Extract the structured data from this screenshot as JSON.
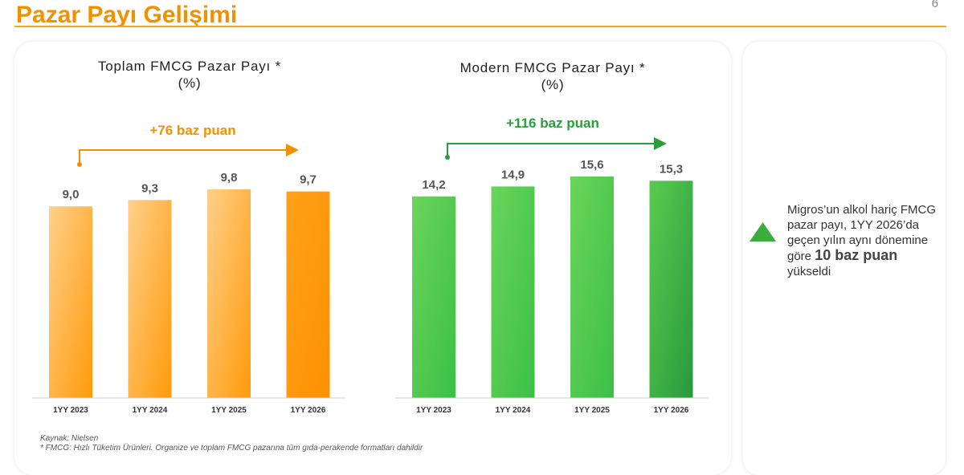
{
  "page": {
    "title": "Pazar Payı Gelişimi",
    "page_number": "6"
  },
  "colors": {
    "orange": "#ff9500",
    "green": "#2fb34a",
    "accent": "#f29100"
  },
  "left_chart": {
    "title_line1": "Toplam FMCG Pazar Payı *",
    "title_line2": "(%)",
    "gain_label": "+76 baz puan"
  },
  "right_chart": {
    "title_line1": "Modern FMCG Pazar Payı *",
    "title_line2": "(%)",
    "gain_label": "+116 baz puan"
  },
  "chart_data": [
    {
      "type": "bar",
      "title": "Toplam FMCG Pazar Payı * (%)",
      "categories": [
        "1YY 2023",
        "1YY 2024",
        "1YY 2025",
        "1YY 2026"
      ],
      "values": [
        9.0,
        9.3,
        9.8,
        9.7
      ],
      "value_labels": [
        "9,0",
        "9,3",
        "9,8",
        "9,7"
      ],
      "annotation": "+76 baz puan",
      "ylim": [
        0,
        9.8
      ],
      "grid": false,
      "color": "#ff9500"
    },
    {
      "type": "bar",
      "title": "Modern FMCG Pazar Payı * (%)",
      "categories": [
        "1YY 2023",
        "1YY 2024",
        "1YY 2025",
        "1YY 2026"
      ],
      "values": [
        14.2,
        14.9,
        15.6,
        15.3
      ],
      "value_labels": [
        "14,2",
        "14,9",
        "15,6",
        "15,3"
      ],
      "annotation": "+116 baz puan",
      "ylim": [
        0,
        15.6
      ],
      "grid": false,
      "color": "#2fb34a"
    }
  ],
  "footnotes": {
    "source": "Kaynak: Nielsen",
    "definition": "* FMCG: Hızlı Tüketim Ürünleri. Organize ve toplam FMCG pazarına tüm gıda-perakende formatları dahildir"
  },
  "note": {
    "text_before": "Migros’un alkol hariç FMCG pazar payı, 1YY 2026’da geçen yılın aynı dönemine göre",
    "highlight": "10 baz puan",
    "text_after": "yükseldi",
    "icon": "up-triangle-icon"
  }
}
